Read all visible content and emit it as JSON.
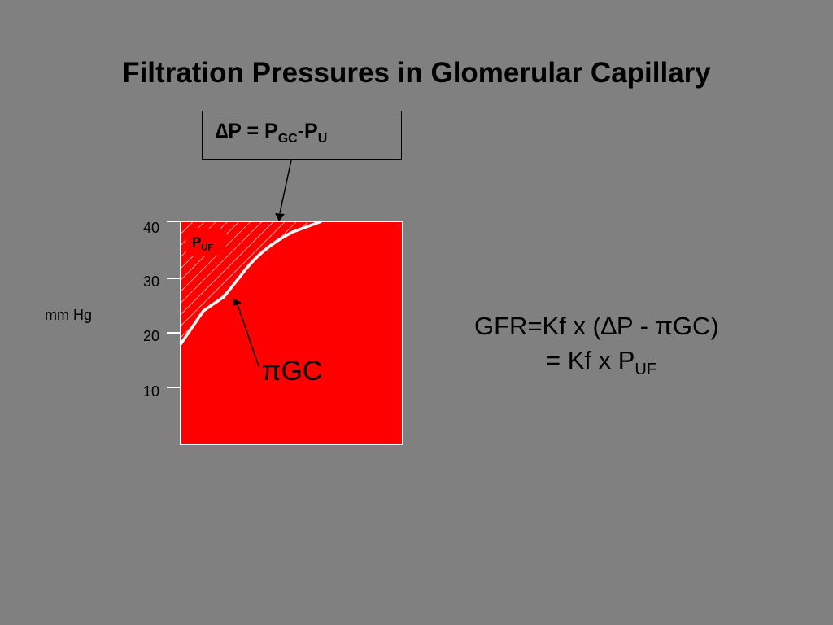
{
  "slide": {
    "title": "Filtration Pressures in Glomerular Capillary"
  },
  "formula_box": {
    "delta_p": "∆P = P",
    "sub_gc": "GC",
    "minus_p": "-P",
    "sub_u": "U"
  },
  "diagram": {
    "y_axis_label": "mm Hg",
    "y_ticks": [
      "40",
      "30",
      "20",
      "10"
    ],
    "puf_main": "P",
    "puf_sub": "UF",
    "pi_gc_label": "πGC",
    "colors": {
      "background": "#808080",
      "fill": "#ff0000",
      "lines": "#ffffff"
    }
  },
  "equation": {
    "line1": "GFR=Kf x (∆P - πGC)",
    "line2_main": "= Kf x P",
    "line2_sub": "UF"
  }
}
